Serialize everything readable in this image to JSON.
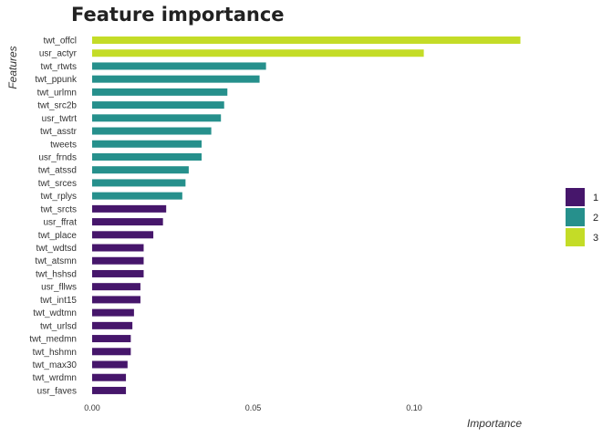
{
  "chart_data": {
    "type": "bar",
    "orientation": "horizontal",
    "title": "Feature importance",
    "xlabel": "Importance",
    "ylabel": "Features",
    "xlim": [
      0,
      0.135
    ],
    "xticks": [
      0.0,
      0.05,
      0.1
    ],
    "xtick_labels": [
      "0.00",
      "0.05",
      "0.10"
    ],
    "grid": false,
    "legend_position": "right",
    "legend": [
      {
        "label": "1",
        "color": "#46166b"
      },
      {
        "label": "2",
        "color": "#26908c"
      },
      {
        "label": "3",
        "color": "#c4dc27"
      }
    ],
    "categories": [
      "twt_offcl",
      "usr_actyr",
      "twt_rtwts",
      "twt_ppunk",
      "twt_urlmn",
      "twt_src2b",
      "usr_twtrt",
      "twt_asstr",
      "tweets",
      "usr_frnds",
      "twt_atssd",
      "twt_srces",
      "twt_rplys",
      "twt_srcts",
      "usr_ffrat",
      "twt_place",
      "twt_wdtsd",
      "twt_atsmn",
      "twt_hshsd",
      "usr_fllws",
      "twt_int15",
      "twt_wdtmn",
      "twt_urlsd",
      "twt_medmn",
      "twt_hshmn",
      "twt_max30",
      "twt_wrdmn",
      "usr_faves"
    ],
    "values": [
      0.133,
      0.103,
      0.054,
      0.052,
      0.042,
      0.041,
      0.04,
      0.037,
      0.034,
      0.034,
      0.03,
      0.029,
      0.028,
      0.023,
      0.022,
      0.019,
      0.016,
      0.016,
      0.016,
      0.015,
      0.015,
      0.013,
      0.0125,
      0.012,
      0.012,
      0.011,
      0.0105,
      0.0105
    ],
    "groups": [
      3,
      3,
      2,
      2,
      2,
      2,
      2,
      2,
      2,
      2,
      2,
      2,
      2,
      1,
      1,
      1,
      1,
      1,
      1,
      1,
      1,
      1,
      1,
      1,
      1,
      1,
      1,
      1
    ]
  }
}
